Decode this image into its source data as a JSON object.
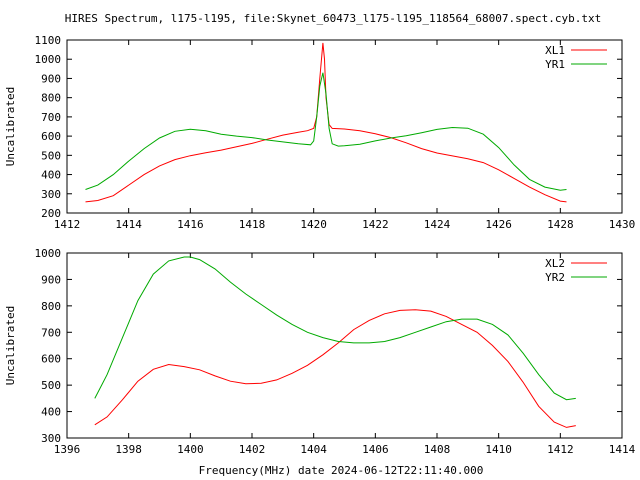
{
  "title": "HIRES Spectrum, l175-l195, file:Skynet_60473_l175-l195_118564_68007.spect.cyb.txt",
  "xlabel": "Frequency(MHz) date 2024-06-12T22:11:40.000",
  "chart_data": [
    {
      "type": "line",
      "title": "HIRES Spectrum, l175-l195, file:Skynet_60473_l175-l195_118564_68007.spect.cyb.txt",
      "xlabel": "",
      "ylabel": "Uncalibrated",
      "xlim": [
        1412,
        1430
      ],
      "ylim": [
        200,
        1100
      ],
      "xticks": [
        1412,
        1414,
        1416,
        1418,
        1420,
        1422,
        1424,
        1426,
        1428,
        1430
      ],
      "yticks": [
        200,
        300,
        400,
        500,
        600,
        700,
        800,
        900,
        1000,
        1100
      ],
      "grid": false,
      "legend_position": "top-right",
      "series": [
        {
          "name": "XL1",
          "color": "#ff0000",
          "x": [
            1412.6,
            1413.0,
            1413.5,
            1414.0,
            1414.5,
            1415.0,
            1415.5,
            1416.0,
            1416.5,
            1417.0,
            1417.5,
            1418.0,
            1418.5,
            1419.0,
            1419.5,
            1419.8,
            1420.0,
            1420.1,
            1420.2,
            1420.3,
            1420.35,
            1420.4,
            1420.5,
            1420.6,
            1421.0,
            1421.5,
            1422.0,
            1422.5,
            1423.0,
            1423.5,
            1424.0,
            1424.5,
            1425.0,
            1425.5,
            1426.0,
            1426.5,
            1427.0,
            1427.5,
            1428.0,
            1428.2
          ],
          "y": [
            258,
            265,
            290,
            345,
            400,
            445,
            478,
            498,
            513,
            527,
            545,
            562,
            584,
            605,
            620,
            628,
            640,
            700,
            900,
            1085,
            1000,
            800,
            660,
            640,
            637,
            628,
            612,
            592,
            565,
            535,
            512,
            497,
            482,
            462,
            425,
            380,
            335,
            295,
            262,
            258
          ]
        },
        {
          "name": "YR1",
          "color": "#00aa00",
          "x": [
            1412.6,
            1413.0,
            1413.5,
            1414.0,
            1414.5,
            1415.0,
            1415.5,
            1416.0,
            1416.5,
            1417.0,
            1417.5,
            1418.0,
            1418.5,
            1419.0,
            1419.5,
            1419.9,
            1420.0,
            1420.1,
            1420.2,
            1420.3,
            1420.4,
            1420.5,
            1420.6,
            1420.8,
            1421.0,
            1421.5,
            1422.0,
            1422.5,
            1423.0,
            1423.5,
            1424.0,
            1424.5,
            1425.0,
            1425.5,
            1426.0,
            1426.5,
            1427.0,
            1427.5,
            1428.0,
            1428.2
          ],
          "y": [
            322,
            345,
            400,
            470,
            535,
            590,
            625,
            636,
            628,
            610,
            600,
            592,
            580,
            570,
            560,
            555,
            575,
            700,
            860,
            930,
            820,
            640,
            560,
            548,
            550,
            558,
            575,
            590,
            602,
            618,
            635,
            645,
            641,
            610,
            540,
            450,
            375,
            335,
            318,
            322
          ]
        }
      ]
    },
    {
      "type": "line",
      "title": "",
      "xlabel": "Frequency(MHz) date 2024-06-12T22:11:40.000",
      "ylabel": "Uncalibrated",
      "xlim": [
        1396,
        1414
      ],
      "ylim": [
        300,
        1000
      ],
      "xticks": [
        1396,
        1398,
        1400,
        1402,
        1404,
        1406,
        1408,
        1410,
        1412,
        1414
      ],
      "yticks": [
        300,
        400,
        500,
        600,
        700,
        800,
        900,
        1000
      ],
      "grid": false,
      "legend_position": "top-right",
      "series": [
        {
          "name": "XL2",
          "color": "#ff0000",
          "x": [
            1396.9,
            1397.3,
            1397.8,
            1398.3,
            1398.8,
            1399.3,
            1399.8,
            1400.3,
            1400.8,
            1401.3,
            1401.8,
            1402.3,
            1402.8,
            1403.3,
            1403.8,
            1404.3,
            1404.8,
            1405.3,
            1405.8,
            1406.3,
            1406.8,
            1407.3,
            1407.8,
            1408.3,
            1408.8,
            1409.3,
            1409.8,
            1410.3,
            1410.8,
            1411.3,
            1411.8,
            1412.2,
            1412.5
          ],
          "y": [
            350,
            380,
            445,
            515,
            560,
            578,
            570,
            558,
            535,
            515,
            505,
            507,
            520,
            545,
            575,
            615,
            660,
            710,
            745,
            770,
            783,
            785,
            780,
            760,
            730,
            700,
            650,
            590,
            510,
            420,
            360,
            340,
            347
          ]
        },
        {
          "name": "YR2",
          "color": "#00aa00",
          "x": [
            1396.9,
            1397.3,
            1397.8,
            1398.3,
            1398.8,
            1399.3,
            1399.8,
            1400.0,
            1400.3,
            1400.8,
            1401.3,
            1401.8,
            1402.3,
            1402.8,
            1403.3,
            1403.8,
            1404.3,
            1404.8,
            1405.3,
            1405.8,
            1406.3,
            1406.8,
            1407.3,
            1407.8,
            1408.3,
            1408.8,
            1409.3,
            1409.8,
            1410.3,
            1410.8,
            1411.3,
            1411.8,
            1412.2,
            1412.5
          ],
          "y": [
            450,
            540,
            680,
            820,
            920,
            970,
            985,
            985,
            975,
            940,
            890,
            845,
            805,
            765,
            730,
            700,
            680,
            665,
            660,
            660,
            665,
            680,
            700,
            720,
            740,
            750,
            750,
            730,
            690,
            620,
            540,
            470,
            445,
            450
          ]
        }
      ]
    }
  ]
}
